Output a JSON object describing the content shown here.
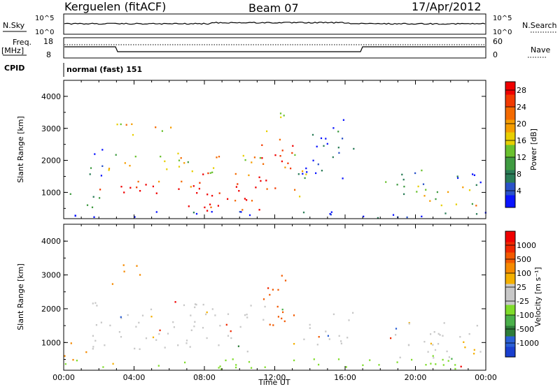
{
  "header": {
    "title": "Kerguelen (fitACF)",
    "beam": "Beam 07",
    "date": "17/Apr/2012"
  },
  "aux_panels": {
    "nsky_label": "N.Sky",
    "nsearch_label": "N.Search",
    "noise_ticks": [
      "10^5",
      "10^0"
    ],
    "freq_label_line1": "Freq.",
    "freq_label_line2": "[MHz]",
    "freq_ticks": [
      "18",
      "8"
    ],
    "nave_label": "Nave",
    "nave_ticks": [
      "60",
      "0"
    ],
    "cpid_label": "CPID",
    "cpid_value": "normal (fast) 151"
  },
  "chart_data": [
    {
      "type": "heatmap",
      "panel": "power",
      "ylabel": "Slant Range [km]",
      "xlabel": "",
      "xlim": [
        0,
        24
      ],
      "ylim": [
        180,
        4500
      ],
      "yticks": [
        "1000",
        "2000",
        "3000",
        "4000"
      ],
      "colorbar": {
        "label": "Power [dB]",
        "ticks": [
          "4",
          "8",
          "12",
          "16",
          "20",
          "24",
          "28"
        ],
        "range": [
          0,
          30
        ],
        "colors": [
          "#0a14ff",
          "#2a52c8",
          "#2a7c57",
          "#3f9b41",
          "#6ac12e",
          "#e8cf00",
          "#f59d00",
          "#f46a00",
          "#f23a00",
          "#f00000"
        ]
      },
      "regions": [
        {
          "t0": 0.0,
          "t1": 2.0,
          "r0": 400,
          "r1": 1000,
          "level": 0.3
        },
        {
          "t0": 1.2,
          "t1": 2.3,
          "r0": 1300,
          "r1": 2500,
          "level": 0.15
        },
        {
          "t0": 2.0,
          "t1": 7.5,
          "r0": 900,
          "r1": 1500,
          "level": 0.9
        },
        {
          "t0": 2.5,
          "t1": 7.5,
          "r0": 1500,
          "r1": 2200,
          "level": 0.55
        },
        {
          "t0": 2.6,
          "t1": 4.5,
          "r0": 2700,
          "r1": 3300,
          "level": 0.55
        },
        {
          "t0": 5.0,
          "t1": 6.5,
          "r0": 2800,
          "r1": 3200,
          "level": 0.5
        },
        {
          "t0": 6.5,
          "t1": 11.2,
          "r0": 400,
          "r1": 1600,
          "level": 0.95
        },
        {
          "t0": 7.5,
          "t1": 11.5,
          "r0": 1500,
          "r1": 2200,
          "level": 0.6
        },
        {
          "t0": 11.0,
          "t1": 13.0,
          "r0": 1000,
          "r1": 2800,
          "level": 0.9
        },
        {
          "t0": 11.5,
          "t1": 12.5,
          "r0": 2800,
          "r1": 3700,
          "level": 0.35
        },
        {
          "t0": 13.0,
          "t1": 13.8,
          "r0": 800,
          "r1": 2500,
          "level": 0.5
        },
        {
          "t0": 13.5,
          "t1": 16.5,
          "r0": 1400,
          "r1": 2600,
          "level": 0.15
        },
        {
          "t0": 14.0,
          "t1": 16.0,
          "r0": 2600,
          "r1": 3400,
          "level": 0.1
        },
        {
          "t0": 18.2,
          "t1": 20.5,
          "r0": 800,
          "r1": 1700,
          "level": 0.25
        },
        {
          "t0": 20.0,
          "t1": 23.8,
          "r0": 400,
          "r1": 1200,
          "level": 0.55
        },
        {
          "t0": 21.5,
          "t1": 23.8,
          "r0": 1200,
          "r1": 1800,
          "level": 0.2
        },
        {
          "t0": 0.0,
          "t1": 24.0,
          "r0": 180,
          "r1": 400,
          "level": 0.1
        }
      ]
    },
    {
      "type": "heatmap",
      "panel": "velocity",
      "ylabel": "Slant Range [km]",
      "xlabel": "Time UT",
      "xlim": [
        0,
        24
      ],
      "ylim": [
        180,
        4500
      ],
      "xticks": [
        "00:00",
        "04:00",
        "08:00",
        "12:00",
        "16:00",
        "20:00",
        "00:00"
      ],
      "yticks": [
        "1000",
        "2000",
        "3000",
        "4000"
      ],
      "colorbar": {
        "label": "Velocity [m s⁻¹]",
        "ticks": [
          "1000",
          "500",
          "100",
          "25",
          "-25",
          "-100",
          "-500",
          "-1000"
        ],
        "colors": [
          "#1a3fcf",
          "#2a5fd6",
          "#2e7d3a",
          "#4ab04a",
          "#7fdc2a",
          "#c8c8c8",
          "#c8c8c8",
          "#f4b000",
          "#f58a00",
          "#f25a00",
          "#f02800",
          "#f00000"
        ]
      },
      "regions": [
        {
          "t0": 0.0,
          "t1": 1.5,
          "r0": 400,
          "r1": 1000,
          "color": "#f58a00"
        },
        {
          "t0": 1.5,
          "t1": 11.5,
          "r0": 700,
          "r1": 2200,
          "color": "#c8c8c8"
        },
        {
          "t0": 2.6,
          "t1": 4.5,
          "r0": 2700,
          "r1": 3300,
          "color": "#f58a00"
        },
        {
          "t0": 11.3,
          "t1": 13.2,
          "r0": 1200,
          "r1": 3000,
          "color": "#f25a00"
        },
        {
          "t0": 13.0,
          "t1": 16.5,
          "r0": 900,
          "r1": 1900,
          "color": "#c8c8c8"
        },
        {
          "t0": 18.5,
          "t1": 23.8,
          "r0": 500,
          "r1": 1600,
          "color": "#c8c8c8"
        },
        {
          "t0": 21.5,
          "t1": 23.8,
          "r0": 500,
          "r1": 1100,
          "color": "#f4b000"
        },
        {
          "t0": 0.0,
          "t1": 24.0,
          "r0": 180,
          "r1": 500,
          "color": "#7fdc2a"
        }
      ]
    }
  ]
}
